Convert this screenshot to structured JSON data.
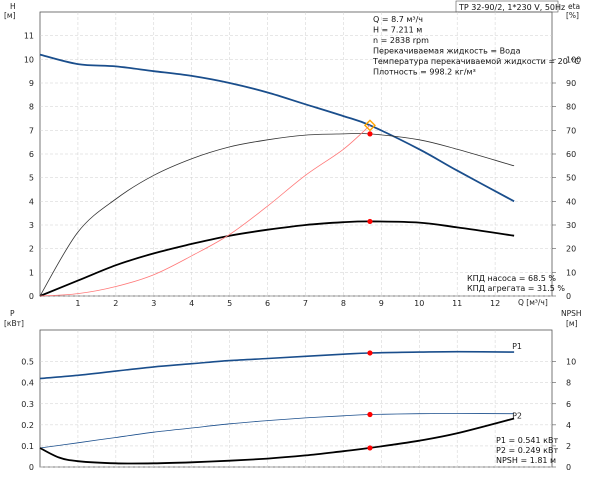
{
  "title_box": "TP 32-90/2, 1*230 V, 50Hz",
  "operating_point": {
    "lines": [
      "Q = 8.7 м³/ч",
      "H = 7.211 м",
      "n = 2838 rpm",
      "Перекачиваемая жидкость = Вода",
      "Температура перекачиваемой жидкости = 20 °C",
      "Плотность = 998.2 кг/м³"
    ]
  },
  "efficiency_info": [
    "КПД насоса = 68.5 %",
    "КПД агрегата = 31.5 %"
  ],
  "power_info": [
    "P1 = 0.541 кВт",
    "P2 = 0.249 кВт",
    "NPSH = 1.81 м"
  ],
  "chart_data": [
    {
      "type": "line",
      "name": "upper",
      "xlabel": "Q [м³/ч]",
      "ylabel_left": [
        "H",
        "[м]"
      ],
      "ylabel_right": [
        "eta",
        "[%]"
      ],
      "xlim": [
        0,
        13.5
      ],
      "ylim_left": [
        0,
        12
      ],
      "ylim_right": [
        0,
        120
      ],
      "xticks": [
        1,
        2,
        3,
        4,
        5,
        6,
        7,
        8,
        9,
        10,
        11,
        12
      ],
      "yticks_left": [
        0,
        1,
        2,
        3,
        4,
        5,
        6,
        7,
        8,
        9,
        10,
        11
      ],
      "yticks_right": [
        0,
        10,
        20,
        30,
        40,
        50,
        60,
        70,
        80,
        90,
        100
      ],
      "grid": true,
      "series": [
        {
          "axis": "left",
          "color": "#1a4e8c",
          "width": 1.8,
          "x": [
            0,
            1,
            2,
            3,
            4,
            5,
            6,
            7,
            8,
            8.7,
            10,
            11,
            12.5
          ],
          "y": [
            10.2,
            9.8,
            9.7,
            9.5,
            9.3,
            9.0,
            8.6,
            8.1,
            7.6,
            7.211,
            6.2,
            5.3,
            4.0
          ]
        },
        {
          "axis": "right",
          "color": "#333333",
          "width": 0.8,
          "x": [
            0,
            1,
            2,
            3,
            4,
            5,
            6,
            7,
            8,
            8.7,
            10,
            11,
            12.5
          ],
          "y": [
            0,
            27,
            41,
            51,
            58,
            63,
            66,
            68,
            68.5,
            68.5,
            66,
            62,
            55
          ]
        },
        {
          "axis": "right",
          "color": "#000000",
          "width": 1.8,
          "x": [
            0,
            1,
            2,
            3,
            4,
            5,
            6,
            7,
            8,
            8.7,
            10,
            11,
            12.5
          ],
          "y": [
            0,
            6.5,
            13,
            18,
            22,
            25.5,
            28,
            30,
            31.2,
            31.5,
            31,
            29,
            25.5
          ]
        },
        {
          "axis": "left",
          "color": "#ff7777",
          "width": 0.8,
          "x": [
            0,
            1,
            2,
            3,
            4,
            5,
            6,
            7,
            8,
            8.7
          ],
          "y": [
            0,
            0.1,
            0.4,
            0.9,
            1.7,
            2.6,
            3.8,
            5.1,
            6.2,
            7.211
          ]
        }
      ],
      "markers": [
        {
          "x": 8.7,
          "y": 6.85,
          "axis": "left",
          "shape": "dot",
          "color": "#ff0000"
        },
        {
          "x": 8.7,
          "y": 3.15,
          "axis": "left",
          "shape": "dot",
          "color": "#ff0000"
        },
        {
          "x": 8.7,
          "y": 7.211,
          "axis": "left",
          "shape": "diamond",
          "color": "#ffa500"
        }
      ]
    },
    {
      "type": "line",
      "name": "lower",
      "ylabel_left": [
        "P",
        "[кВт]"
      ],
      "ylabel_right": [
        "NPSH",
        "[м]"
      ],
      "xlim": [
        0,
        13.5
      ],
      "ylim_left": [
        0,
        0.65
      ],
      "ylim_right": [
        0,
        13
      ],
      "yticks_left": [
        0,
        0.1,
        0.2,
        0.3,
        0.4,
        0.5
      ],
      "yticks_right": [
        0,
        2,
        4,
        6,
        8,
        10
      ],
      "grid": true,
      "series": [
        {
          "name": "P1",
          "axis": "left",
          "color": "#1a4e8c",
          "width": 1.6,
          "x": [
            0,
            1,
            2,
            3,
            4,
            5,
            6,
            7,
            8,
            8.7,
            10,
            11,
            12.5
          ],
          "y": [
            0.42,
            0.435,
            0.455,
            0.475,
            0.49,
            0.505,
            0.515,
            0.525,
            0.535,
            0.541,
            0.545,
            0.547,
            0.545
          ]
        },
        {
          "name": "P2",
          "axis": "left",
          "color": "#1a4e8c",
          "width": 0.8,
          "x": [
            0,
            1,
            2,
            3,
            4,
            5,
            6,
            7,
            8,
            8.7,
            10,
            11,
            12.5
          ],
          "y": [
            0.09,
            0.115,
            0.14,
            0.165,
            0.185,
            0.205,
            0.22,
            0.233,
            0.243,
            0.249,
            0.253,
            0.254,
            0.253
          ]
        },
        {
          "axis": "right",
          "color": "#000000",
          "width": 1.8,
          "x": [
            0,
            0.5,
            1,
            2,
            3,
            4,
            5,
            6,
            7,
            8,
            8.7,
            10,
            11,
            12.5
          ],
          "y": [
            1.8,
            0.9,
            0.55,
            0.35,
            0.35,
            0.45,
            0.6,
            0.8,
            1.1,
            1.5,
            1.81,
            2.5,
            3.2,
            4.6
          ]
        }
      ],
      "series_labels": [
        "P1",
        "P2"
      ],
      "markers": [
        {
          "x": 8.7,
          "y": 0.541,
          "axis": "left",
          "shape": "dot",
          "color": "#ff0000"
        },
        {
          "x": 8.7,
          "y": 0.249,
          "axis": "left",
          "shape": "dot",
          "color": "#ff0000"
        },
        {
          "x": 8.7,
          "y": 1.81,
          "axis": "right",
          "shape": "dot",
          "color": "#ff0000"
        }
      ]
    }
  ]
}
